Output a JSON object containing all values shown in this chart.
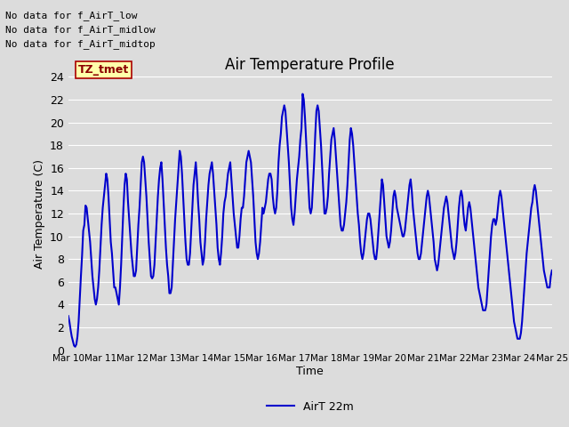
{
  "title": "Air Temperature Profile",
  "xlabel": "Time",
  "ylabel": "Air Temperature (C)",
  "line_color": "#0000CC",
  "line_width": 1.5,
  "background_color": "#DCDCDC",
  "plot_bg_color": "#DCDCDC",
  "ylim": [
    0,
    24
  ],
  "yticks": [
    0,
    2,
    4,
    6,
    8,
    10,
    12,
    14,
    16,
    18,
    20,
    22,
    24
  ],
  "legend_label": "AirT 22m",
  "no_data_texts": [
    "No data for f_AirT_low",
    "No data for f_AirT_midlow",
    "No data for f_AirT_midtop"
  ],
  "watermark_text": "TZ_tmet",
  "x_tick_labels": [
    "Mar 10",
    "Mar 11",
    "Mar 12",
    "Mar 13",
    "Mar 14",
    "Mar 15",
    "Mar 16",
    "Mar 17",
    "Mar 18",
    "Mar 19",
    "Mar 20",
    "Mar 21",
    "Mar 22",
    "Mar 23",
    "Mar 24",
    "Mar 25"
  ],
  "temperatures": [
    3.0,
    2.5,
    1.8,
    1.2,
    0.8,
    0.4,
    0.3,
    0.5,
    1.2,
    2.5,
    4.5,
    6.5,
    8.3,
    10.5,
    11.0,
    12.7,
    12.5,
    11.5,
    10.5,
    9.5,
    8.0,
    6.5,
    5.5,
    4.5,
    4.0,
    4.5,
    5.5,
    7.0,
    9.0,
    11.0,
    12.5,
    13.5,
    14.5,
    15.5,
    15.0,
    13.5,
    11.5,
    9.5,
    8.5,
    7.0,
    5.5,
    5.5,
    5.0,
    4.5,
    4.0,
    5.5,
    7.5,
    10.0,
    12.5,
    14.5,
    15.5,
    15.0,
    13.0,
    11.5,
    10.0,
    8.5,
    7.5,
    6.5,
    6.5,
    7.0,
    9.0,
    11.0,
    12.5,
    14.5,
    16.5,
    17.0,
    16.5,
    15.0,
    13.5,
    11.5,
    9.5,
    8.0,
    6.5,
    6.3,
    6.5,
    7.5,
    9.5,
    11.5,
    13.5,
    15.0,
    16.0,
    16.5,
    15.0,
    13.0,
    11.0,
    9.0,
    7.5,
    6.5,
    5.0,
    5.0,
    5.5,
    7.5,
    9.5,
    11.5,
    13.0,
    14.5,
    16.0,
    17.5,
    17.0,
    15.5,
    13.5,
    11.5,
    9.5,
    8.0,
    7.5,
    7.5,
    8.5,
    10.5,
    12.5,
    14.5,
    15.5,
    16.5,
    15.0,
    13.0,
    11.5,
    9.5,
    8.5,
    7.5,
    8.0,
    9.5,
    11.5,
    13.0,
    14.5,
    15.5,
    16.0,
    16.5,
    15.5,
    14.0,
    12.5,
    11.0,
    9.0,
    8.0,
    7.5,
    8.5,
    10.0,
    12.0,
    13.0,
    13.5,
    14.5,
    15.5,
    16.0,
    16.5,
    15.0,
    13.5,
    12.0,
    11.0,
    10.0,
    9.0,
    9.0,
    10.0,
    11.5,
    12.5,
    12.5,
    13.5,
    15.0,
    16.5,
    17.0,
    17.5,
    17.0,
    16.5,
    15.0,
    13.5,
    11.5,
    9.5,
    8.5,
    8.0,
    8.5,
    9.5,
    11.0,
    12.5,
    12.0,
    12.5,
    13.0,
    14.0,
    15.0,
    15.5,
    15.5,
    15.0,
    13.5,
    12.5,
    12.0,
    12.5,
    14.0,
    16.5,
    18.0,
    19.0,
    20.5,
    21.0,
    21.5,
    21.0,
    19.5,
    18.0,
    16.5,
    14.5,
    12.5,
    11.5,
    11.0,
    12.0,
    13.5,
    15.0,
    16.0,
    17.0,
    18.5,
    19.5,
    22.5,
    22.0,
    20.5,
    18.5,
    16.5,
    14.5,
    12.5,
    12.0,
    12.5,
    14.5,
    16.5,
    19.0,
    21.0,
    21.5,
    21.0,
    19.5,
    18.0,
    16.0,
    14.0,
    12.0,
    12.0,
    12.5,
    13.5,
    15.5,
    17.0,
    18.5,
    19.0,
    19.5,
    18.5,
    17.0,
    15.5,
    14.0,
    12.5,
    11.0,
    10.5,
    10.5,
    11.0,
    12.0,
    13.0,
    14.5,
    16.5,
    18.5,
    19.5,
    19.0,
    18.0,
    16.5,
    15.0,
    13.5,
    12.0,
    11.0,
    9.5,
    8.5,
    8.0,
    8.5,
    9.5,
    10.5,
    11.5,
    12.0,
    12.0,
    11.5,
    10.5,
    9.5,
    8.5,
    8.0,
    8.0,
    9.0,
    10.5,
    12.0,
    13.5,
    15.0,
    14.5,
    13.0,
    11.5,
    10.0,
    9.5,
    9.0,
    9.5,
    10.5,
    12.0,
    13.5,
    14.0,
    13.5,
    12.5,
    12.0,
    11.5,
    11.0,
    10.5,
    10.0,
    10.0,
    10.5,
    11.5,
    12.5,
    13.5,
    14.5,
    15.0,
    14.0,
    12.5,
    11.5,
    10.5,
    9.5,
    8.5,
    8.0,
    8.0,
    8.5,
    9.5,
    10.5,
    11.5,
    12.5,
    13.5,
    14.0,
    13.5,
    12.5,
    11.5,
    10.5,
    9.5,
    8.0,
    7.5,
    7.0,
    7.5,
    8.5,
    9.5,
    10.5,
    11.5,
    12.5,
    13.0,
    13.5,
    13.0,
    12.0,
    11.0,
    10.0,
    9.0,
    8.5,
    8.0,
    8.5,
    9.5,
    11.0,
    12.5,
    13.5,
    14.0,
    13.5,
    12.0,
    11.0,
    10.5,
    11.5,
    12.5,
    13.0,
    12.5,
    11.5,
    10.5,
    9.5,
    8.5,
    7.5,
    6.5,
    5.5,
    5.0,
    4.5,
    4.0,
    3.5,
    3.5,
    3.5,
    4.0,
    5.5,
    7.0,
    8.5,
    10.0,
    11.0,
    11.5,
    11.5,
    11.0,
    11.5,
    12.5,
    13.5,
    14.0,
    13.5,
    12.5,
    11.5,
    10.5,
    9.5,
    8.5,
    7.5,
    6.5,
    5.5,
    4.5,
    3.5,
    2.5,
    2.0,
    1.5,
    1.0,
    1.0,
    1.0,
    1.5,
    2.5,
    4.0,
    5.5,
    7.0,
    8.5,
    9.5,
    10.5,
    11.5,
    12.5,
    13.0,
    14.0,
    14.5,
    14.0,
    13.0,
    12.0,
    11.0,
    10.0,
    9.0,
    8.0,
    7.0,
    6.5,
    6.0,
    5.5,
    5.5,
    5.5,
    6.5,
    7.0
  ]
}
